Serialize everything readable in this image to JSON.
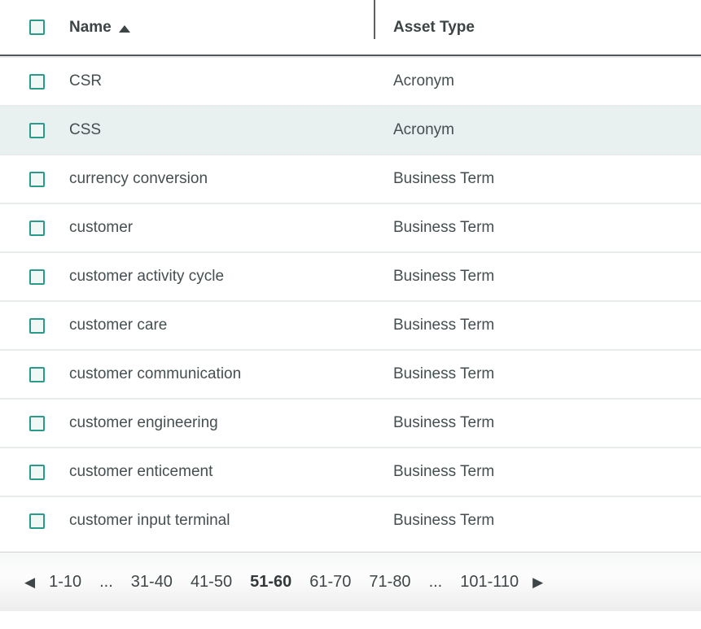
{
  "table": {
    "columns": {
      "name_label": "Name",
      "type_label": "Asset Type",
      "sort": "ascending"
    },
    "rows": [
      {
        "name": "CSR",
        "type": "Acronym"
      },
      {
        "name": "CSS",
        "type": "Acronym"
      },
      {
        "name": "currency conversion",
        "type": "Business Term"
      },
      {
        "name": "customer",
        "type": "Business Term"
      },
      {
        "name": "customer activity cycle",
        "type": "Business Term"
      },
      {
        "name": "customer care",
        "type": "Business Term"
      },
      {
        "name": "customer communication",
        "type": "Business Term"
      },
      {
        "name": "customer engineering",
        "type": "Business Term"
      },
      {
        "name": "customer enticement",
        "type": "Business Term"
      },
      {
        "name": "customer input terminal",
        "type": "Business Term"
      }
    ],
    "highlighted_row": "CSS"
  },
  "pagination": {
    "prev_icon": "◀",
    "next_icon": "▶",
    "pages": [
      "1-10",
      "...",
      "31-40",
      "41-50",
      "51-60",
      "61-70",
      "71-80",
      "...",
      "101-110"
    ],
    "current": "51-60"
  },
  "colors": {
    "accent_teal": "#2a9b8b",
    "row_highlight": "#e8f1f0",
    "header_text": "#3c4446",
    "row_text": "#454e50",
    "row_separator": "#e7ebeb",
    "header_border": "#55595b"
  }
}
